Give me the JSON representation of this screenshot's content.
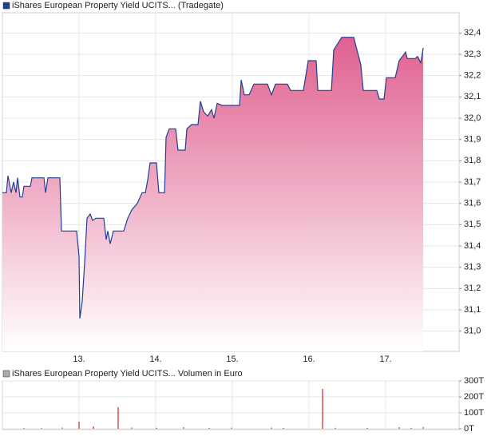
{
  "chart_data": [
    {
      "type": "line",
      "xlim": [
        12,
        17.958
      ],
      "ylim": [
        30.905,
        32.495
      ],
      "grid": true,
      "fill_gradient": [
        "#e0608f",
        "#ffffff"
      ],
      "xticks": [
        {
          "value": 13,
          "label": "13."
        },
        {
          "value": 14,
          "label": "14."
        },
        {
          "value": 15,
          "label": "15."
        },
        {
          "value": 16,
          "label": "16."
        },
        {
          "value": 17,
          "label": "17."
        }
      ],
      "yticks": [
        {
          "value": 31.0,
          "label": "31,0"
        },
        {
          "value": 31.1,
          "label": "31,1"
        },
        {
          "value": 31.2,
          "label": "31,2"
        },
        {
          "value": 31.3,
          "label": "31,3"
        },
        {
          "value": 31.4,
          "label": "31,4"
        },
        {
          "value": 31.5,
          "label": "31,5"
        },
        {
          "value": 31.6,
          "label": "31,6"
        },
        {
          "value": 31.7,
          "label": "31,7"
        },
        {
          "value": 31.8,
          "label": "31,8"
        },
        {
          "value": 31.9,
          "label": "31,9"
        },
        {
          "value": 32.0,
          "label": "32,0"
        },
        {
          "value": 32.1,
          "label": "32,1"
        },
        {
          "value": 32.2,
          "label": "32,2"
        },
        {
          "value": 32.3,
          "label": "32,3"
        },
        {
          "value": 32.4,
          "label": "32,4"
        }
      ],
      "x": [
        12.0,
        12.052,
        12.073,
        12.115,
        12.146,
        12.177,
        12.198,
        12.229,
        12.26,
        12.281,
        12.365,
        12.385,
        12.542,
        12.563,
        12.594,
        12.75,
        12.771,
        12.969,
        13.0,
        13.01,
        13.042,
        13.073,
        13.104,
        13.146,
        13.177,
        13.219,
        13.323,
        13.354,
        13.375,
        13.406,
        13.448,
        13.531,
        13.583,
        13.635,
        13.688,
        13.76,
        13.823,
        13.865,
        13.896,
        13.927,
        14.01,
        14.042,
        14.115,
        14.135,
        14.177,
        14.26,
        14.292,
        14.385,
        14.406,
        14.469,
        14.552,
        14.583,
        14.625,
        14.677,
        14.729,
        14.76,
        14.802,
        14.865,
        15.094,
        15.115,
        15.156,
        15.219,
        15.281,
        15.458,
        15.51,
        15.563,
        15.719,
        15.76,
        15.927,
        15.99,
        16.094,
        16.115,
        16.292,
        16.323,
        16.427,
        16.552,
        16.583,
        16.677,
        16.708,
        16.885,
        16.917,
        16.979,
        17.01,
        17.125,
        17.177,
        17.26,
        17.281,
        17.385,
        17.417,
        17.458,
        17.49
      ],
      "series": [
        {
          "name": "iShares European Property Yield UCITS... (Tradegate)",
          "color": "#1f3e96",
          "values": [
            31.65,
            31.65,
            31.73,
            31.65,
            31.7,
            31.65,
            31.72,
            31.63,
            31.63,
            31.68,
            31.68,
            31.72,
            31.72,
            31.65,
            31.72,
            31.72,
            31.47,
            31.47,
            31.35,
            31.06,
            31.14,
            31.32,
            31.53,
            31.55,
            31.52,
            31.53,
            31.53,
            31.43,
            31.47,
            31.41,
            31.47,
            31.47,
            31.47,
            31.53,
            31.57,
            31.6,
            31.65,
            31.65,
            31.71,
            31.79,
            31.79,
            31.65,
            31.65,
            31.91,
            31.95,
            31.95,
            31.85,
            31.85,
            31.95,
            31.97,
            31.97,
            32.08,
            32.03,
            32.01,
            32.04,
            32.0,
            32.07,
            32.06,
            32.06,
            32.18,
            32.11,
            32.11,
            32.16,
            32.16,
            32.11,
            32.16,
            32.16,
            32.13,
            32.13,
            32.27,
            32.27,
            32.13,
            32.13,
            32.32,
            32.38,
            32.38,
            32.38,
            32.25,
            32.13,
            32.13,
            32.09,
            32.09,
            32.19,
            32.19,
            32.27,
            32.31,
            32.28,
            32.28,
            32.29,
            32.26,
            32.33
          ]
        }
      ]
    },
    {
      "type": "bar",
      "xlim": [
        12,
        17.958
      ],
      "ylim": [
        0,
        300000
      ],
      "grid": true,
      "yticks": [
        {
          "value": 0,
          "label": "0T"
        },
        {
          "value": 100000,
          "label": "100T"
        },
        {
          "value": 200000,
          "label": "200T"
        },
        {
          "value": 300000,
          "label": "300T"
        }
      ],
      "x": [
        12.281,
        12.51,
        12.781,
        13.0,
        13.188,
        13.51,
        13.688,
        14.01,
        14.365,
        14.698,
        14.99,
        15.51,
        15.667,
        16.177,
        16.344,
        16.76,
        17.177,
        17.333,
        17.49
      ],
      "series": [
        {
          "name": "iShares European Property Yield UCITS... Volumen in Euro",
          "color": "#aaaaaa",
          "values": [
            5000,
            4000,
            8000,
            45000,
            15000,
            135000,
            8000,
            6000,
            10000,
            5000,
            7000,
            8000,
            5000,
            250000,
            6000,
            5000,
            10000,
            6000,
            12000
          ],
          "colors": [
            "#2a9d2a",
            "#d62020",
            "#2a9d2a",
            "#d62020",
            "#d62020",
            "#d62020",
            "#2a9d2a",
            "#d62020",
            "#2a9d2a",
            "#d62020",
            "#2a9d2a",
            "#2a9d2a",
            "#d62020",
            "#d62020",
            "#2a9d2a",
            "#d62020",
            "#2a9d2a",
            "#d62020",
            "#2a9d2a"
          ]
        }
      ]
    }
  ]
}
